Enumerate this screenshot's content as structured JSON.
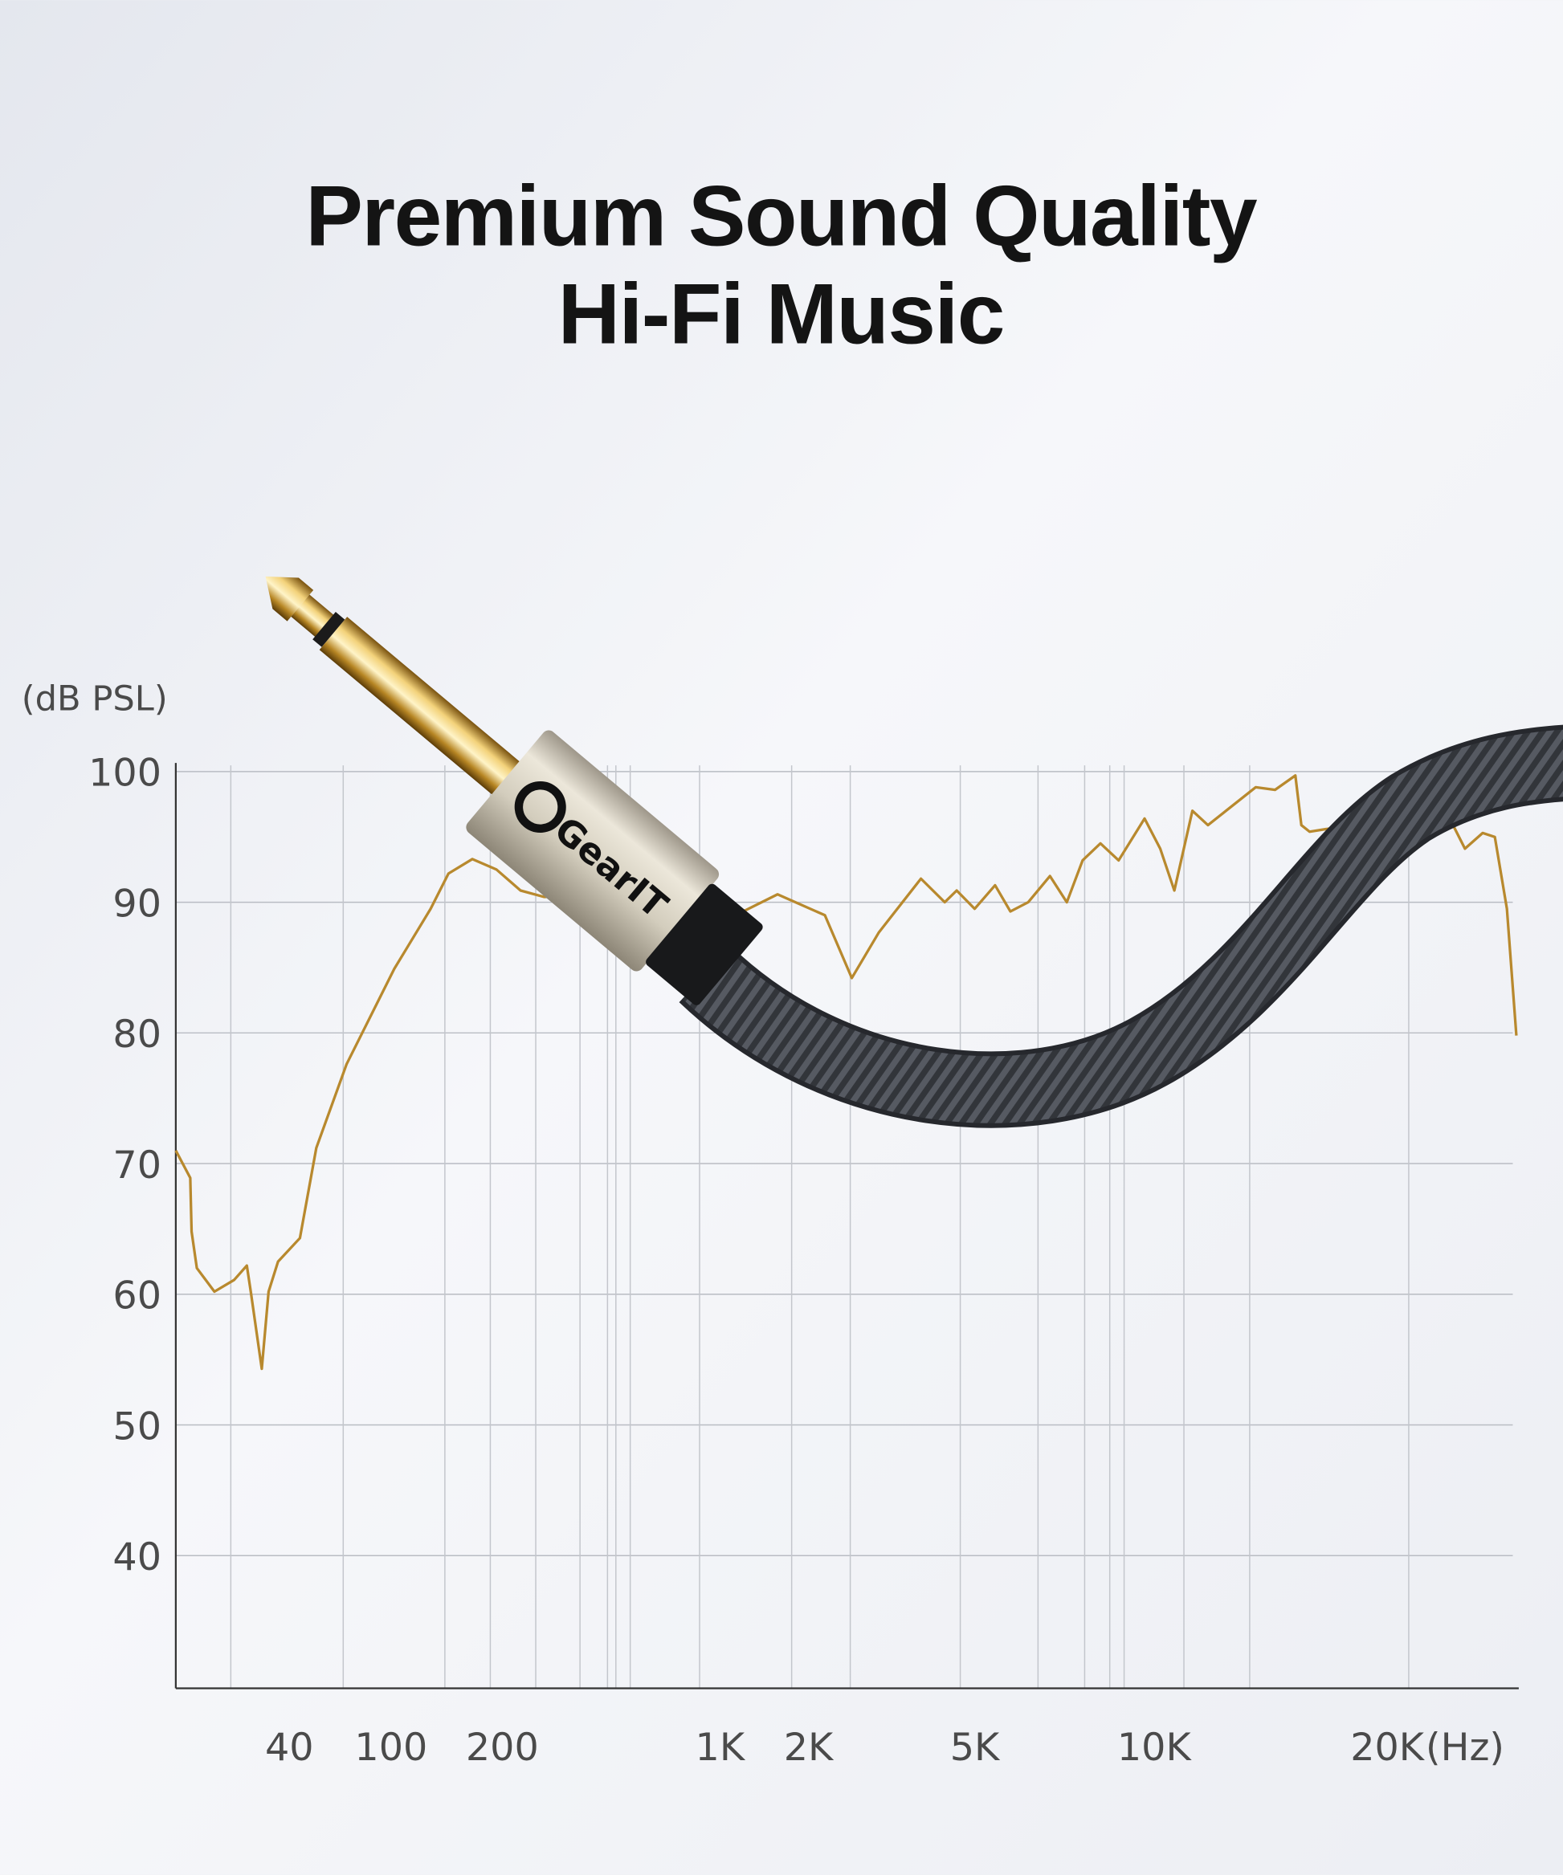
{
  "header": {
    "title_line1": "Premium Sound Quality",
    "title_line2": "Hi-Fi Music"
  },
  "product": {
    "brand_logo": "GearIT",
    "image": "gold 6.35mm jack plug with braided cable"
  },
  "colors": {
    "curve": "#b8892e",
    "grid": "#b9bcc3",
    "axis": "#333333",
    "text": "#141414",
    "cable": "#3a3d44",
    "housing": "#d6d0c0",
    "gold": "#c99a2e"
  },
  "chart_data": {
    "type": "line",
    "title": "",
    "xlabel": "",
    "ylabel": "(dB PSL)",
    "x_unit_label": "(Hz)",
    "x_scale": "log",
    "ylim": [
      30,
      100
    ],
    "grid": true,
    "y_ticks": [
      "100",
      "90",
      "80",
      "70",
      "60",
      "50",
      "40"
    ],
    "y_tick_values": [
      100,
      90,
      80,
      70,
      60,
      50,
      40
    ],
    "x_ticks": [
      "40",
      "100",
      "200",
      "1K",
      "2K",
      "5K",
      "10K",
      "20K"
    ],
    "x_tick_values": [
      40,
      100,
      200,
      1000,
      2000,
      5000,
      10000,
      20000
    ],
    "series": [
      {
        "x": [
          14,
          16,
          16.2,
          17,
          20,
          24,
          27,
          28,
          31,
          33,
          36,
          44,
          51,
          67,
          102,
          128,
          143,
          166,
          193,
          229,
          273,
          980,
          1130,
          1570,
          2190,
          2540,
          2950,
          3720,
          4240,
          4530,
          5000,
          5410,
          5740,
          6150,
          6690,
          7140,
          7590,
          8130,
          8720,
          9640,
          10170,
          10570,
          11100,
          11580,
          13190,
          13900,
          14690,
          14930,
          15270,
          17100,
          18570,
          19190,
          21130,
          22200,
          23300,
          24450,
          25280,
          26120,
          26800
        ],
        "y": [
          71.0,
          68.9,
          64.8,
          62.0,
          60.2,
          61.1,
          62.2,
          60.2,
          54.3,
          60.2,
          62.5,
          64.3,
          71.2,
          77.6,
          84.9,
          89.5,
          92.2,
          93.3,
          92.5,
          90.9,
          90.4,
          90.9,
          89.0,
          90.6,
          89.0,
          84.2,
          87.7,
          91.8,
          90.0,
          90.9,
          89.5,
          91.3,
          89.3,
          90.0,
          92.0,
          90.0,
          93.2,
          94.5,
          93.2,
          96.4,
          94.1,
          90.9,
          97.0,
          95.9,
          98.8,
          98.6,
          99.7,
          95.9,
          95.4,
          95.9,
          94.5,
          95.0,
          96.8,
          96.8,
          94.1,
          95.3,
          95.0,
          89.5,
          79.8
        ]
      }
    ]
  }
}
